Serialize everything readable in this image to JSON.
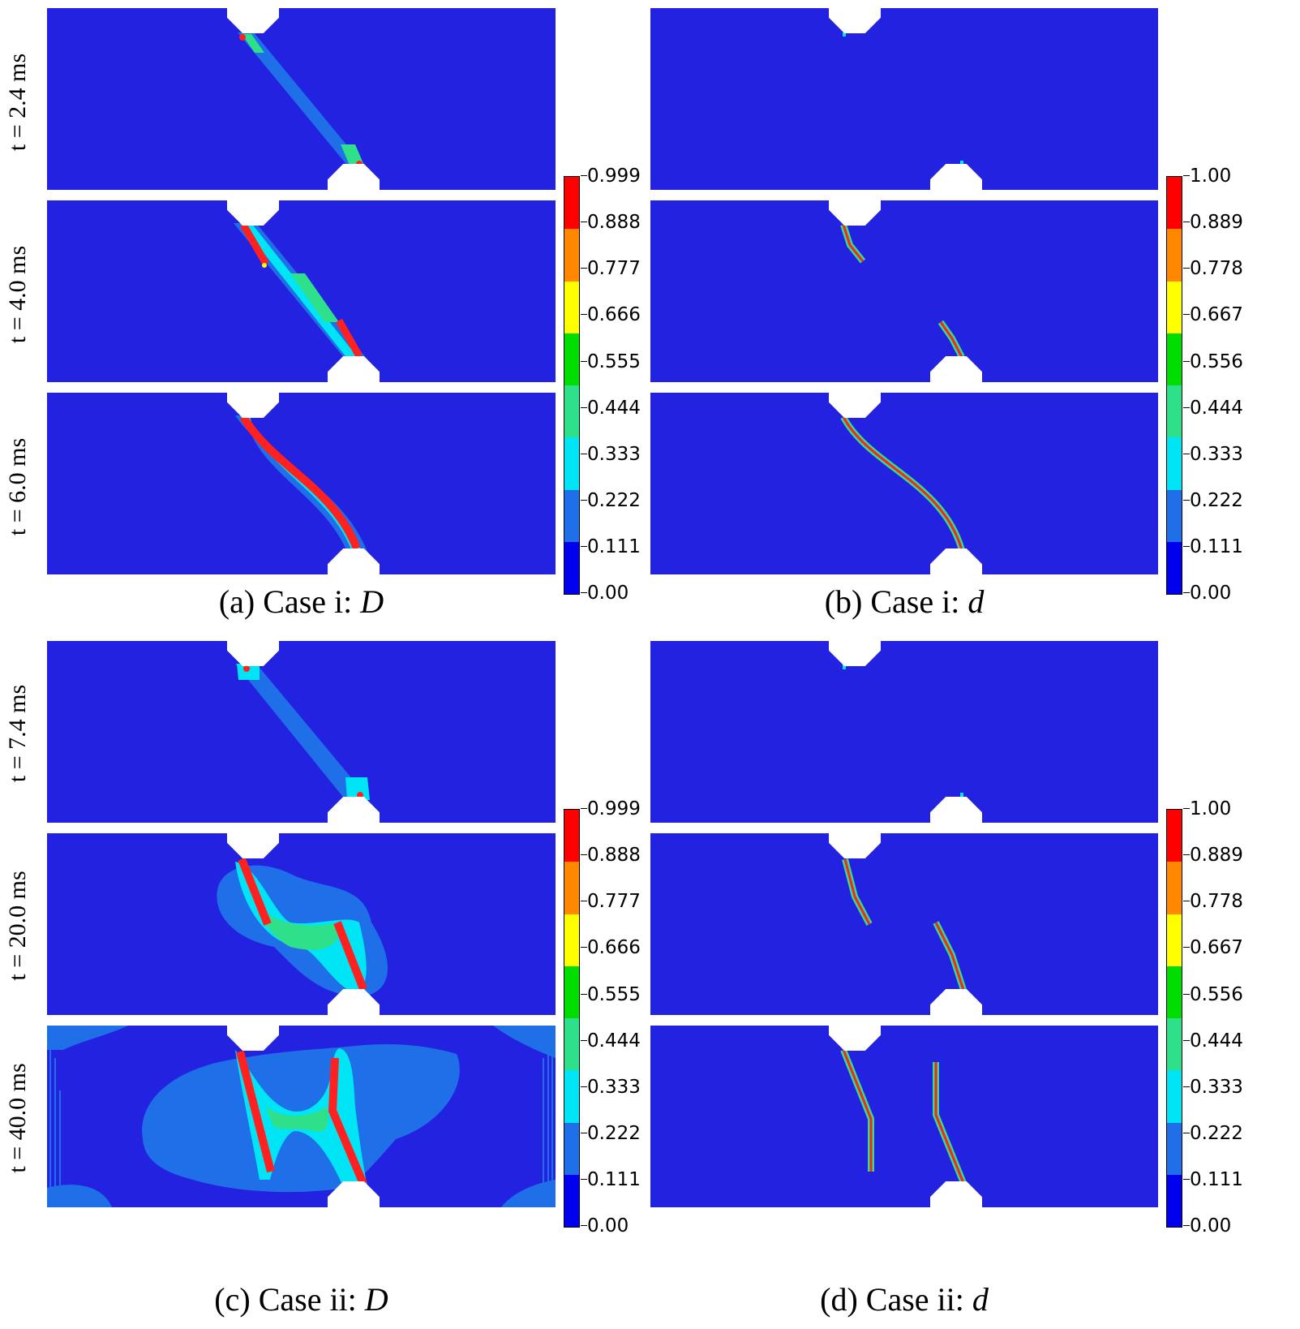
{
  "colorbar_colors": [
    "#0000ee",
    "#1f6fe8",
    "#00e5f5",
    "#2ee08a",
    "#00dd00",
    "#ffff00",
    "#ff8800",
    "#ff0000"
  ],
  "colors": {
    "background_field": "#2222e0",
    "low_damage": "#1f6fe8",
    "mid": "#00e5f5",
    "green": "#2ee08a",
    "yellow": "#ffff00",
    "crack": "#ff2020"
  },
  "colorbar_left": {
    "ticks": [
      "0.999",
      "0.888",
      "0.777",
      "0.666",
      "0.555",
      "0.444",
      "0.333",
      "0.222",
      "0.111",
      "0.00"
    ]
  },
  "colorbar_right": {
    "ticks": [
      "1.00",
      "0.889",
      "0.778",
      "0.667",
      "0.556",
      "0.444",
      "0.333",
      "0.222",
      "0.111",
      "0.00"
    ]
  },
  "case_i": {
    "time_labels": [
      "t = 2.4 ms",
      "t = 4.0 ms",
      "t = 6.0 ms"
    ],
    "caption_a": {
      "prefix": "(a) Case i: ",
      "var": "D"
    },
    "caption_b": {
      "prefix": "(b) Case i: ",
      "var": "d"
    }
  },
  "case_ii": {
    "time_labels": [
      "t = 7.4 ms",
      "t = 20.0 ms",
      "t = 40.0 ms"
    ],
    "caption_c": {
      "prefix": "(c) Case ii: ",
      "var": "D"
    },
    "caption_d": {
      "prefix": "(d) Case ii: ",
      "var": "d"
    }
  }
}
